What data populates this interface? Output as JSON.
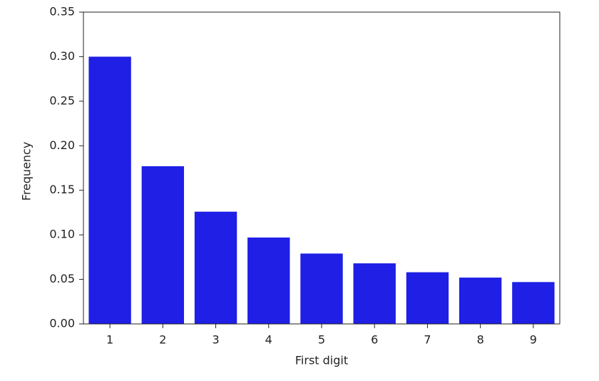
{
  "chart_data": {
    "type": "bar",
    "x_label": "First digit",
    "y_label": "Frequency",
    "categories": [
      "1",
      "2",
      "3",
      "4",
      "5",
      "6",
      "7",
      "8",
      "9"
    ],
    "values": [
      0.3,
      0.177,
      0.126,
      0.097,
      0.079,
      0.068,
      0.058,
      0.052,
      0.047
    ],
    "color": "#1f1fe6",
    "ylim": [
      0,
      0.35
    ],
    "yticks": [
      {
        "value": 0,
        "label": "0.00"
      },
      {
        "value": 0.05,
        "label": "0.05"
      },
      {
        "value": 0.1,
        "label": "0.10"
      },
      {
        "value": 0.15,
        "label": "0.15"
      },
      {
        "value": 0.2,
        "label": "0.20"
      },
      {
        "value": 0.25,
        "label": "0.25"
      },
      {
        "value": 0.3,
        "label": "0.30"
      },
      {
        "value": 0.35,
        "label": "0.35"
      }
    ],
    "grid": false
  }
}
